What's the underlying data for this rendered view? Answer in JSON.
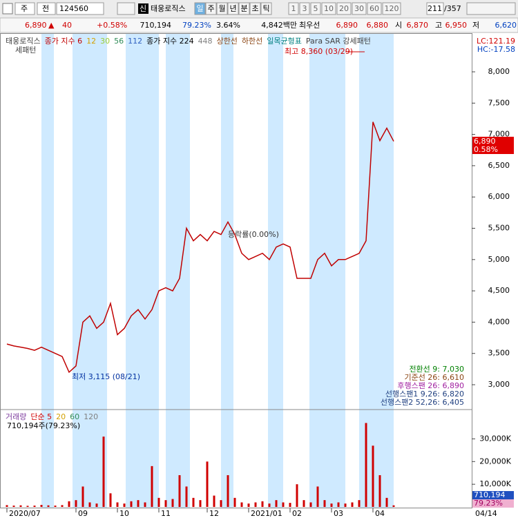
{
  "toolbar": {
    "mode": "주",
    "market": "전",
    "code": "124560",
    "badge": "신",
    "name": "태웅로직스",
    "units": [
      "일",
      "주",
      "월",
      "년",
      "분",
      "초",
      "틱"
    ],
    "periods": [
      "1",
      "3",
      "5",
      "10",
      "20",
      "30",
      "60",
      "120"
    ],
    "count": "211",
    "total": "/357"
  },
  "info": {
    "price": "6,890",
    "arrow": "▲",
    "change": "40",
    "change_rate": "+0.58%",
    "volume": "710,194",
    "volume_ratio": "79.23%",
    "turnover": "3.64%",
    "amount": "4,842백만",
    "best_label": "최우선",
    "ask": "6,890",
    "bid": "6,880",
    "open_label": "시",
    "open": "6,870",
    "high_label": "고",
    "high": "6,950",
    "low_label": "저",
    "low": "6,620"
  },
  "chart_data": [
    {
      "type": "line",
      "series": [
        {
          "name": "태웅로직스",
          "color": "#c00000",
          "values": [
            3650,
            3620,
            3600,
            3580,
            3550,
            3600,
            3550,
            3500,
            3450,
            3200,
            3300,
            4000,
            4100,
            3900,
            4000,
            4300,
            3800,
            3900,
            4100,
            4200,
            4050,
            4200,
            4500,
            4550,
            4500,
            4700,
            5500,
            5300,
            5400,
            5300,
            5450,
            5400,
            5600,
            5400,
            5100,
            5000,
            5050,
            5100,
            5000,
            5200,
            5250,
            5200,
            4700,
            4700,
            4700,
            5000,
            5100,
            4900,
            5000,
            5000,
            5050,
            5100,
            5300,
            7200,
            6900,
            7100,
            6890
          ]
        }
      ],
      "legend_items": [
        {
          "label": "종가 지수 6",
          "color": "#c00000"
        },
        {
          "label": "12",
          "color": "#d4a000"
        },
        {
          "label": "30",
          "color": "#9acd32"
        },
        {
          "label": "56",
          "color": "#2e8b57"
        },
        {
          "label": "112",
          "color": "#3060c0"
        },
        {
          "label": "종가 지수 224",
          "color": "#000000"
        },
        {
          "label": "448",
          "color": "#808080"
        },
        {
          "label": "상한선",
          "color": "#8b4513"
        },
        {
          "label": "하한선",
          "color": "#8b4513"
        },
        {
          "label": "일목균형표",
          "color": "#008080"
        },
        {
          "label": "Para SAR 강세패턴",
          "color": "#404040"
        }
      ],
      "legend_second": "세패턴",
      "categories": [
        "2020/07",
        null,
        null,
        null,
        null,
        null,
        null,
        null,
        null,
        null,
        "09",
        null,
        null,
        null,
        null,
        null,
        "10",
        null,
        null,
        null,
        null,
        null,
        "11",
        null,
        null,
        null,
        null,
        null,
        null,
        "12",
        null,
        null,
        null,
        null,
        null,
        "2021/01",
        null,
        null,
        null,
        null,
        null,
        "02",
        null,
        null,
        null,
        null,
        null,
        "03",
        null,
        null,
        null,
        null,
        null,
        "04",
        null,
        null,
        null
      ],
      "x_end_label": "04/14",
      "ylim": [
        2636,
        8596
      ],
      "yticks": [
        {
          "value": 3000,
          "label": "3,000"
        },
        {
          "value": 3500,
          "label": "3,500"
        },
        {
          "value": 4000,
          "label": "4,000"
        },
        {
          "value": 4500,
          "label": "4,500"
        },
        {
          "value": 5000,
          "label": "5,000"
        },
        {
          "value": 5500,
          "label": "5,500"
        },
        {
          "value": 6000,
          "label": "6,000"
        },
        {
          "value": 6500,
          "label": "6,500"
        },
        {
          "value": 7000,
          "label": "7,000"
        },
        {
          "value": 7500,
          "label": "7,500"
        },
        {
          "value": 8000,
          "label": "8,000"
        }
      ],
      "lc": "LC:121.19",
      "hc": "HC:-17.58",
      "high_note": "최고 8,360 (03/29)",
      "low_note": "최저 3,115 (08/21)",
      "rate_note": "등락률(0.00%)",
      "last_price_tag": "6,890",
      "last_change_tag": "0.58%",
      "ichimoku": [
        {
          "label": "전환선 9: 7,030",
          "color": "#008000"
        },
        {
          "label": "기준선 26: 6,610",
          "color": "#8b4513"
        },
        {
          "label": "후행스팬 26: 6,890",
          "color": "#a020a0"
        },
        {
          "label": "선행스팬1 9,26: 6,820",
          "color": "#204080"
        },
        {
          "label": "선행스팬2 52,26: 6,405",
          "color": "#204080"
        }
      ]
    },
    {
      "type": "bar",
      "title": "거래량",
      "color": "#d00000",
      "legend_items": [
        {
          "label": "단순 5",
          "color": "#d00000"
        },
        {
          "label": "20",
          "color": "#d4a000"
        },
        {
          "label": "60",
          "color": "#2e8b57"
        },
        {
          "label": "120",
          "color": "#808080"
        }
      ],
      "status": "710,194주(79.23%)",
      "values": [
        800,
        600,
        700,
        500,
        600,
        900,
        700,
        600,
        800,
        2500,
        3000,
        9000,
        2000,
        1500,
        31000,
        6000,
        2000,
        1500,
        2500,
        3000,
        2000,
        18000,
        4000,
        3000,
        3500,
        14000,
        9000,
        4000,
        3000,
        20000,
        5000,
        3000,
        14000,
        4000,
        2000,
        1500,
        2000,
        2500,
        1500,
        3000,
        2000,
        1800,
        10000,
        3000,
        2000,
        9000,
        3000,
        1500,
        2000,
        1500,
        2000,
        3000,
        37000,
        27000,
        14000,
        4000,
        710
      ],
      "ylim": [
        0,
        42000
      ],
      "yticks": [
        {
          "value": 10000,
          "label": "10,000K"
        },
        {
          "value": 20000,
          "label": "20,000K"
        },
        {
          "value": 30000,
          "label": "30,000K"
        }
      ],
      "last_value_tag": "710,194",
      "last_ratio_tag": "79.23%"
    }
  ]
}
